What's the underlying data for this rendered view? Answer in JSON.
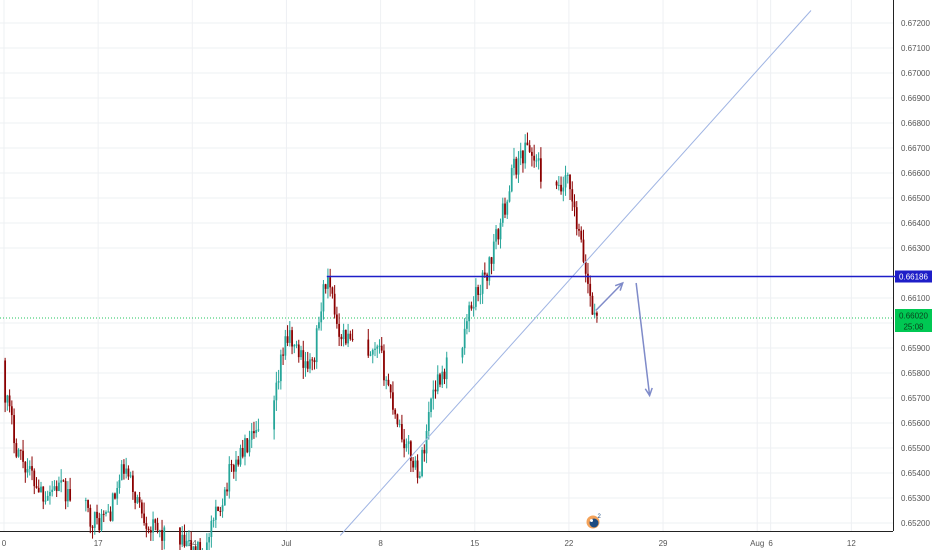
{
  "chart_data": {
    "type": "candlestick",
    "title": "",
    "xlabel": "",
    "ylabel": "",
    "ylim": [
      0.6517,
      0.6725
    ],
    "y_ticks": [
      "0.67200",
      "0.67100",
      "0.67000",
      "0.66900",
      "0.66800",
      "0.66700",
      "0.66600",
      "0.66500",
      "0.66400",
      "0.66300",
      "0.66100",
      "0.66000",
      "0.65900",
      "0.65800",
      "0.65700",
      "0.65600",
      "0.65500",
      "0.65400",
      "0.65300",
      "0.65200"
    ],
    "x_tick_labels": [
      {
        "label": "0",
        "date": "2019-06-10"
      },
      {
        "label": "17",
        "date": "2019-06-17"
      },
      {
        "label": "24",
        "date": "2019-06-24"
      },
      {
        "label": "Jul",
        "date": "2019-07-01"
      },
      {
        "label": "8",
        "date": "2019-07-08"
      },
      {
        "label": "15",
        "date": "2019-07-15"
      },
      {
        "label": "22",
        "date": "2019-07-22"
      },
      {
        "label": "29",
        "date": "2019-07-29"
      },
      {
        "label": "Aug",
        "date": "2019-08-05"
      },
      {
        "label": "6",
        "date": "2019-08-06"
      },
      {
        "label": "12",
        "date": "2019-08-12"
      }
    ],
    "grid": true,
    "colors": {
      "up": "#26a69a",
      "down": "#8b0000",
      "grid": "#eef0f3",
      "level": "#1e1ec8",
      "trendline": "#9fb4e3",
      "arrow": "#7f8bc9",
      "price_tag": "#00c853"
    },
    "horizontal_level": {
      "value": "0.66186",
      "start": "2019-07-04",
      "end": "2019-08-16"
    },
    "current_price": {
      "value": "0.66020",
      "countdown": "25:08"
    },
    "trendline": {
      "start": {
        "date": "2019-07-05",
        "price": 0.6515
      },
      "end": {
        "date": "2019-08-09",
        "price": 0.6725
      }
    },
    "projection_arrows": [
      {
        "from": {
          "date": "2019-07-24",
          "price": 0.6605
        },
        "to": {
          "date": "2019-07-26",
          "price": 0.6616
        }
      },
      {
        "from": {
          "date": "2019-07-27",
          "price": 0.6616
        },
        "to": {
          "date": "2019-07-28",
          "price": 0.6571
        }
      }
    ]
  },
  "icons": {
    "logo": "tradingview-logo-icon"
  }
}
